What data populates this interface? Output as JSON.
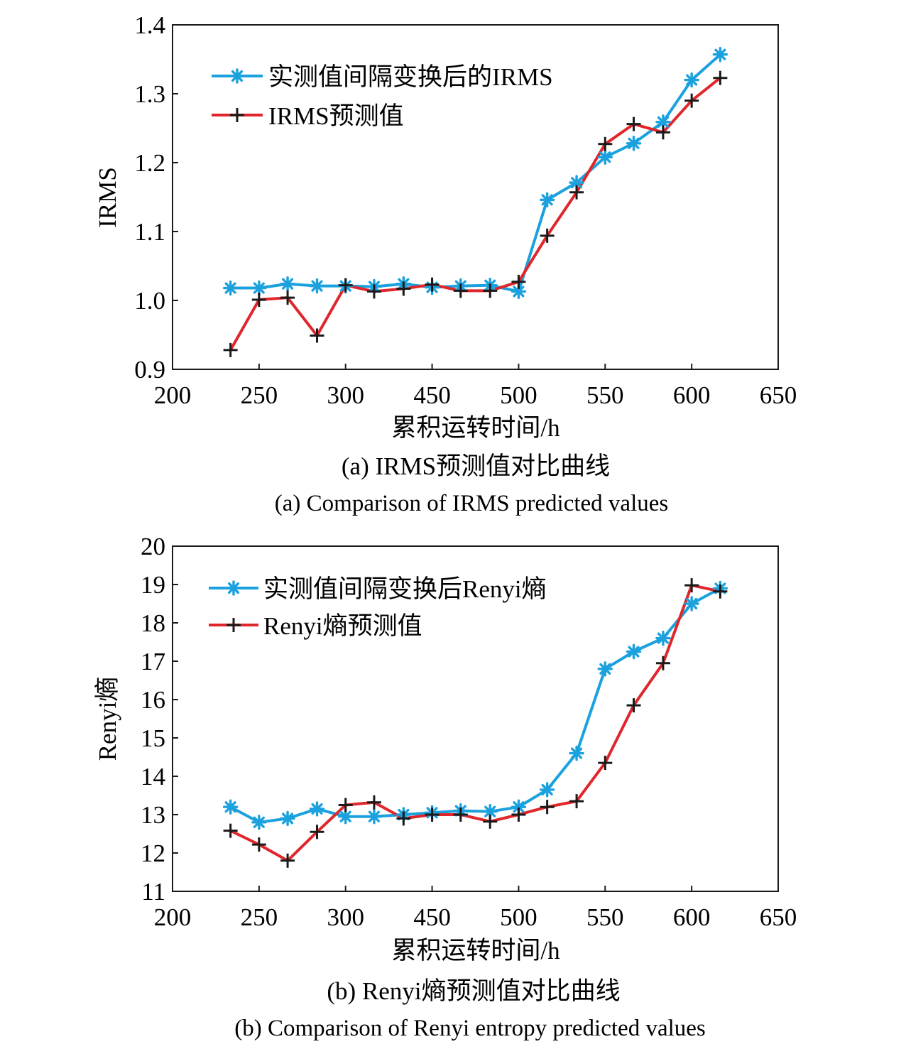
{
  "colors": {
    "measured": "#1ba1dd",
    "predicted": "#e0262b",
    "marker_predicted": "#1a1a1a"
  },
  "chart_data": [
    {
      "type": "line",
      "caption_zh": "(a) IRMS预测值对比曲线",
      "caption_en": "(a) Comparison of IRMS predicted values",
      "xlabel": "累积运转时间/h",
      "ylabel": "IRMS",
      "xticks": [
        "200",
        "250",
        "300",
        "450",
        "500",
        "550",
        "600",
        "650"
      ],
      "yticks": [
        "0.9",
        "1.0",
        "1.1",
        "1.2",
        "1.3",
        "1.4"
      ],
      "ylim": [
        0.9,
        1.4
      ],
      "x_index_lim": [
        0,
        7
      ],
      "x": [
        0.67,
        1.0,
        1.33,
        1.67,
        2.0,
        2.33,
        2.67,
        3.0,
        3.33,
        3.67,
        4.0,
        4.33,
        4.67,
        5.0,
        5.33,
        5.67,
        6.0,
        6.33
      ],
      "legend_position": "top-left",
      "series": [
        {
          "name": "实测值间隔变换后的IRMS",
          "marker": "asterisk",
          "values": [
            1.018,
            1.018,
            1.024,
            1.021,
            1.021,
            1.02,
            1.024,
            1.019,
            1.021,
            1.022,
            1.013,
            1.146,
            1.171,
            1.208,
            1.228,
            1.259,
            1.32,
            1.357
          ]
        },
        {
          "name": "IRMS预测值",
          "marker": "plus",
          "values": [
            0.928,
            1.001,
            1.004,
            0.949,
            1.022,
            1.013,
            1.017,
            1.023,
            1.014,
            1.014,
            1.027,
            1.094,
            1.157,
            1.227,
            1.256,
            1.244,
            1.29,
            1.323
          ]
        }
      ]
    },
    {
      "type": "line",
      "caption_zh": "(b) Renyi熵预测值对比曲线",
      "caption_en": "(b) Comparison of Renyi entropy predicted values",
      "xlabel": "累积运转时间/h",
      "ylabel": "Renyi熵",
      "xticks": [
        "200",
        "250",
        "300",
        "450",
        "500",
        "550",
        "600",
        "650"
      ],
      "yticks": [
        "11",
        "12",
        "13",
        "14",
        "15",
        "16",
        "17",
        "18",
        "19",
        "20"
      ],
      "ylim": [
        11,
        20
      ],
      "x_index_lim": [
        0,
        7
      ],
      "x": [
        0.67,
        1.0,
        1.33,
        1.67,
        2.0,
        2.33,
        2.67,
        3.0,
        3.33,
        3.67,
        4.0,
        4.33,
        4.67,
        5.0,
        5.33,
        5.67,
        6.0,
        6.33
      ],
      "legend_position": "top-left",
      "series": [
        {
          "name": "实测值间隔变换后Renyi熵",
          "marker": "asterisk",
          "values": [
            13.2,
            12.8,
            12.9,
            13.15,
            12.95,
            12.95,
            13.0,
            13.05,
            13.1,
            13.08,
            13.2,
            13.65,
            14.6,
            16.8,
            17.25,
            17.6,
            18.5,
            18.9
          ]
        },
        {
          "name": "Renyi熵预测值",
          "marker": "plus",
          "values": [
            12.58,
            12.22,
            11.8,
            12.55,
            13.25,
            13.32,
            12.9,
            13.0,
            13.0,
            12.82,
            13.0,
            13.2,
            13.35,
            14.35,
            15.85,
            16.95,
            18.98,
            18.82
          ]
        }
      ]
    }
  ]
}
